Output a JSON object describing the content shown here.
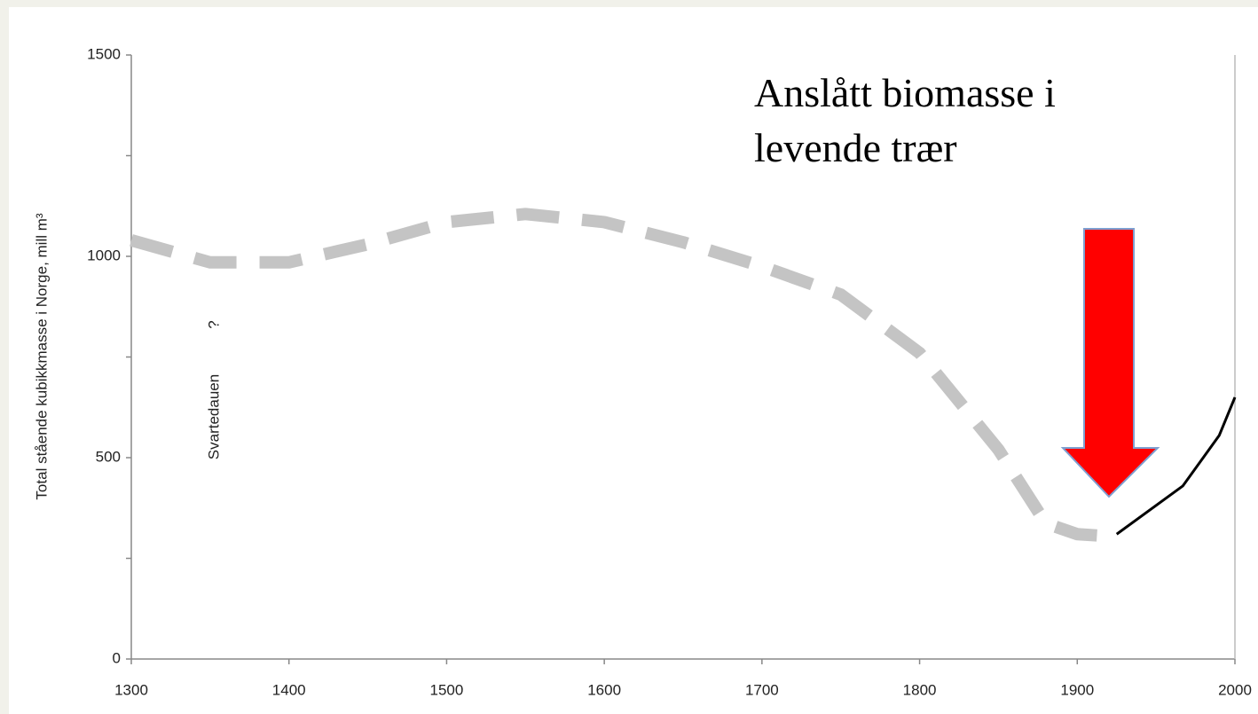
{
  "chart_data": {
    "type": "line",
    "ylabel": "Total stående kubikkmasse i Norge, mill m³",
    "annotation_lines": [
      "Anslått biomasse i",
      "levende trær"
    ],
    "notes": [
      "Svartedauen",
      "?"
    ],
    "xlim": [
      1300,
      2000
    ],
    "xticks": [
      1300,
      1400,
      1500,
      1600,
      1700,
      1800,
      1900,
      2000
    ],
    "ylim": [
      0,
      1500
    ],
    "yticks": [
      0,
      500,
      1000,
      1500
    ],
    "yminor_ticks": [
      250,
      750,
      1250
    ],
    "series": [
      {
        "color": "#c4c4c4",
        "style": "dashed",
        "x": [
          1300,
          1350,
          1400,
          1450,
          1500,
          1550,
          1600,
          1650,
          1700,
          1750,
          1800,
          1850,
          1880,
          1900,
          1920
        ],
        "values": [
          1040,
          985,
          985,
          1030,
          1085,
          1105,
          1085,
          1035,
          975,
          905,
          760,
          520,
          337,
          310,
          305
        ]
      },
      {
        "color": "#000000",
        "style": "solid",
        "x": [
          1925,
          1967,
          1990,
          2000
        ],
        "values": [
          310,
          430,
          555,
          650
        ]
      }
    ]
  }
}
